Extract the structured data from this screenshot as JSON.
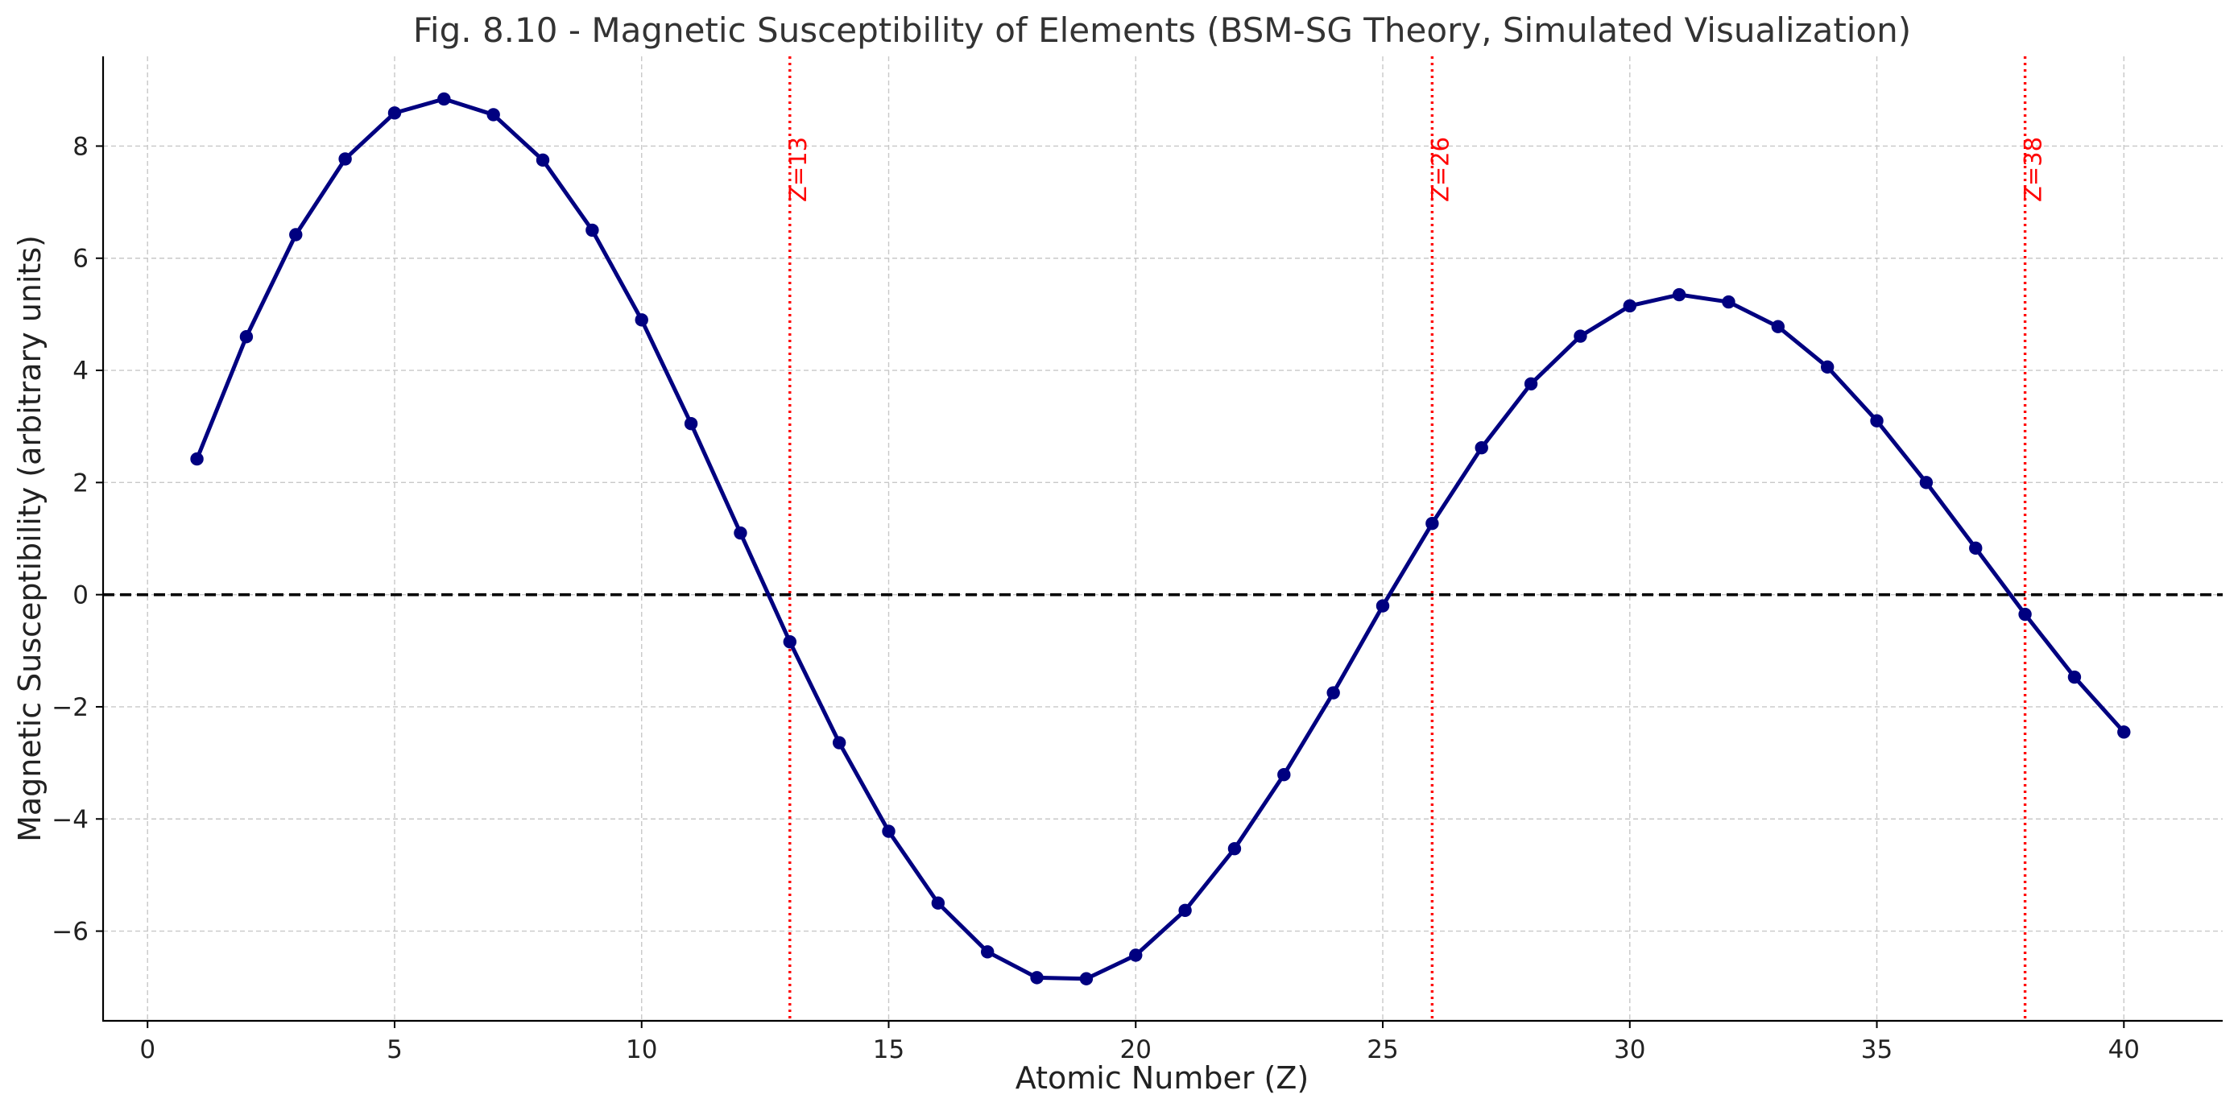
{
  "chart_data": {
    "type": "line",
    "title": "Fig. 8.10 - Magnetic Susceptibility of Elements (BSM-SG Theory, Simulated Visualization)",
    "xlabel": "Atomic Number (Z)",
    "ylabel": "Magnetic Susceptibility (arbitrary units)",
    "xlim": [
      -0.9,
      42
    ],
    "ylim": [
      -7.6,
      9.6
    ],
    "x_ticks": [
      0,
      5,
      10,
      15,
      20,
      25,
      30,
      35,
      40
    ],
    "x_tick_labels": [
      "0",
      "5",
      "10",
      "15",
      "20",
      "25",
      "30",
      "35",
      "40"
    ],
    "y_ticks": [
      -6,
      -4,
      -2,
      0,
      2,
      4,
      6,
      8
    ],
    "y_tick_labels": [
      "−6",
      "−4",
      "−2",
      "0",
      "2",
      "4",
      "6",
      "8"
    ],
    "grid": true,
    "series": [
      {
        "color": "#000080",
        "x": [
          1,
          2,
          3,
          4,
          5,
          6,
          7,
          8,
          9,
          10,
          11,
          12,
          13,
          14,
          15,
          16,
          17,
          18,
          19,
          20,
          21,
          22,
          23,
          24,
          25,
          26,
          27,
          28,
          29,
          30,
          31,
          32,
          33,
          34,
          35,
          36,
          37,
          38,
          39,
          40
        ],
        "values": [
          2.42,
          4.6,
          6.42,
          7.77,
          8.59,
          8.84,
          8.56,
          7.75,
          6.5,
          4.9,
          3.05,
          1.1,
          -0.84,
          -2.64,
          -4.22,
          -5.5,
          -6.37,
          -6.83,
          -6.85,
          -6.43,
          -5.63,
          -4.53,
          -3.21,
          -1.75,
          -0.2,
          1.27,
          2.62,
          3.76,
          4.61,
          5.15,
          5.35,
          5.22,
          4.78,
          4.06,
          3.1,
          2.0,
          0.83,
          -0.35,
          -1.47,
          -2.45
        ]
      }
    ],
    "reference_line": {
      "y": 0,
      "style": "dashed",
      "color": "#000000"
    },
    "vertical_markers": [
      {
        "x": 13,
        "label": "Z=13",
        "color": "#ff0000",
        "style": "dotted"
      },
      {
        "x": 26,
        "label": "Z=26",
        "color": "#ff0000",
        "style": "dotted"
      },
      {
        "x": 38,
        "label": "Z=38",
        "color": "#ff0000",
        "style": "dotted"
      }
    ]
  }
}
